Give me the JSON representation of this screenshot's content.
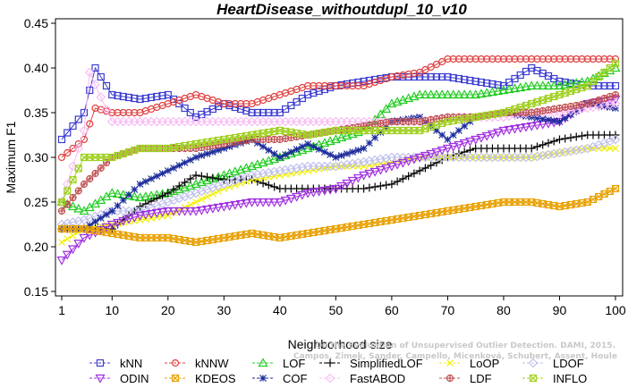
{
  "chart_data": {
    "type": "line",
    "title": "HeartDisease_withoutdupl_10_v10",
    "xlabel": "Neighborhood size",
    "ylabel": "Maximum F1",
    "xlim": [
      1,
      100
    ],
    "ylim": [
      0.15,
      0.45
    ],
    "x_ticks": [
      "1",
      "10",
      "20",
      "30",
      "40",
      "50",
      "60",
      "70",
      "80",
      "90",
      "100"
    ],
    "y_ticks": [
      "0.15",
      "0.20",
      "0.25",
      "0.30",
      "0.35",
      "0.40",
      "0.45"
    ],
    "grid": false,
    "legend_position": "bottom",
    "credit_lines": [
      "Campos, Zimek, Sander, Campello, Micenková, Schubert, Assent, Houle",
      "On the Evaluation of Unsupervised Outlier Detection. DAMI, 2015."
    ],
    "x_anchor_note": "values listed at k = 1, 5, 10, ..., 100",
    "series": [
      {
        "name": "kNN",
        "color": "#3c3cd2",
        "marker": "square",
        "points": [
          [
            1,
            0.32
          ],
          [
            5,
            0.35
          ],
          [
            7,
            0.4
          ],
          [
            10,
            0.37
          ],
          [
            15,
            0.365
          ],
          [
            20,
            0.37
          ],
          [
            25,
            0.345
          ],
          [
            30,
            0.36
          ],
          [
            35,
            0.35
          ],
          [
            40,
            0.35
          ],
          [
            45,
            0.37
          ],
          [
            50,
            0.38
          ],
          [
            55,
            0.385
          ],
          [
            60,
            0.39
          ],
          [
            65,
            0.39
          ],
          [
            70,
            0.39
          ],
          [
            75,
            0.385
          ],
          [
            80,
            0.38
          ],
          [
            85,
            0.4
          ],
          [
            90,
            0.385
          ],
          [
            95,
            0.38
          ],
          [
            100,
            0.38
          ]
        ]
      },
      {
        "name": "kNNW",
        "color": "#e04040",
        "marker": "circle",
        "points": [
          [
            1,
            0.3
          ],
          [
            5,
            0.32
          ],
          [
            7,
            0.355
          ],
          [
            10,
            0.35
          ],
          [
            15,
            0.35
          ],
          [
            20,
            0.36
          ],
          [
            25,
            0.37
          ],
          [
            30,
            0.36
          ],
          [
            35,
            0.36
          ],
          [
            40,
            0.37
          ],
          [
            45,
            0.38
          ],
          [
            50,
            0.38
          ],
          [
            55,
            0.38
          ],
          [
            60,
            0.39
          ],
          [
            65,
            0.395
          ],
          [
            70,
            0.41
          ],
          [
            75,
            0.41
          ],
          [
            80,
            0.41
          ],
          [
            85,
            0.41
          ],
          [
            90,
            0.41
          ],
          [
            95,
            0.41
          ],
          [
            100,
            0.41
          ]
        ]
      },
      {
        "name": "LOF",
        "color": "#22cc22",
        "marker": "triangle-up",
        "points": [
          [
            1,
            0.25
          ],
          [
            5,
            0.24
          ],
          [
            10,
            0.26
          ],
          [
            15,
            0.255
          ],
          [
            20,
            0.26
          ],
          [
            25,
            0.27
          ],
          [
            30,
            0.28
          ],
          [
            35,
            0.29
          ],
          [
            40,
            0.3
          ],
          [
            45,
            0.31
          ],
          [
            50,
            0.32
          ],
          [
            55,
            0.33
          ],
          [
            60,
            0.36
          ],
          [
            65,
            0.37
          ],
          [
            70,
            0.37
          ],
          [
            75,
            0.37
          ],
          [
            80,
            0.375
          ],
          [
            85,
            0.38
          ],
          [
            90,
            0.38
          ],
          [
            95,
            0.385
          ],
          [
            100,
            0.4
          ]
        ]
      },
      {
        "name": "SimplifiedLOF",
        "color": "#000000",
        "marker": "plus",
        "points": [
          [
            1,
            0.22
          ],
          [
            5,
            0.22
          ],
          [
            10,
            0.22
          ],
          [
            15,
            0.245
          ],
          [
            20,
            0.26
          ],
          [
            25,
            0.28
          ],
          [
            30,
            0.275
          ],
          [
            35,
            0.275
          ],
          [
            40,
            0.265
          ],
          [
            45,
            0.265
          ],
          [
            50,
            0.265
          ],
          [
            55,
            0.265
          ],
          [
            60,
            0.27
          ],
          [
            65,
            0.285
          ],
          [
            70,
            0.3
          ],
          [
            75,
            0.31
          ],
          [
            80,
            0.31
          ],
          [
            85,
            0.31
          ],
          [
            90,
            0.32
          ],
          [
            95,
            0.325
          ],
          [
            100,
            0.325
          ]
        ]
      },
      {
        "name": "LoOP",
        "color": "#f0f000",
        "marker": "x",
        "points": [
          [
            1,
            0.205
          ],
          [
            5,
            0.22
          ],
          [
            10,
            0.225
          ],
          [
            15,
            0.23
          ],
          [
            20,
            0.235
          ],
          [
            25,
            0.25
          ],
          [
            30,
            0.265
          ],
          [
            35,
            0.275
          ],
          [
            40,
            0.28
          ],
          [
            45,
            0.285
          ],
          [
            50,
            0.29
          ],
          [
            55,
            0.29
          ],
          [
            60,
            0.295
          ],
          [
            65,
            0.3
          ],
          [
            70,
            0.3
          ],
          [
            75,
            0.3
          ],
          [
            80,
            0.3
          ],
          [
            85,
            0.3
          ],
          [
            90,
            0.305
          ],
          [
            95,
            0.31
          ],
          [
            100,
            0.31
          ]
        ]
      },
      {
        "name": "LDOF",
        "color": "#c0c0ee",
        "marker": "diamond",
        "points": [
          [
            1,
            0.225
          ],
          [
            5,
            0.23
          ],
          [
            10,
            0.24
          ],
          [
            15,
            0.24
          ],
          [
            20,
            0.25
          ],
          [
            25,
            0.26
          ],
          [
            30,
            0.27
          ],
          [
            35,
            0.28
          ],
          [
            40,
            0.285
          ],
          [
            45,
            0.29
          ],
          [
            50,
            0.29
          ],
          [
            55,
            0.295
          ],
          [
            60,
            0.3
          ],
          [
            65,
            0.3
          ],
          [
            70,
            0.3
          ],
          [
            75,
            0.3
          ],
          [
            80,
            0.3
          ],
          [
            85,
            0.3
          ],
          [
            90,
            0.305
          ],
          [
            95,
            0.31
          ],
          [
            100,
            0.32
          ]
        ]
      },
      {
        "name": "ODIN",
        "color": "#a030e0",
        "marker": "triangle-down",
        "points": [
          [
            1,
            0.185
          ],
          [
            5,
            0.21
          ],
          [
            10,
            0.225
          ],
          [
            15,
            0.235
          ],
          [
            20,
            0.24
          ],
          [
            25,
            0.24
          ],
          [
            30,
            0.245
          ],
          [
            35,
            0.25
          ],
          [
            40,
            0.25
          ],
          [
            45,
            0.26
          ],
          [
            50,
            0.265
          ],
          [
            55,
            0.28
          ],
          [
            60,
            0.29
          ],
          [
            65,
            0.3
          ],
          [
            70,
            0.31
          ],
          [
            75,
            0.32
          ],
          [
            80,
            0.33
          ],
          [
            85,
            0.335
          ],
          [
            90,
            0.34
          ],
          [
            95,
            0.36
          ],
          [
            100,
            0.365
          ]
        ]
      },
      {
        "name": "COF",
        "color": "#1a2a9a",
        "marker": "asterisk",
        "points": [
          [
            1,
            0.22
          ],
          [
            5,
            0.22
          ],
          [
            10,
            0.24
          ],
          [
            15,
            0.27
          ],
          [
            20,
            0.285
          ],
          [
            25,
            0.3
          ],
          [
            30,
            0.31
          ],
          [
            35,
            0.32
          ],
          [
            40,
            0.3
          ],
          [
            45,
            0.315
          ],
          [
            50,
            0.3
          ],
          [
            55,
            0.31
          ],
          [
            60,
            0.34
          ],
          [
            65,
            0.345
          ],
          [
            70,
            0.32
          ],
          [
            75,
            0.345
          ],
          [
            80,
            0.35
          ],
          [
            85,
            0.345
          ],
          [
            90,
            0.34
          ],
          [
            95,
            0.36
          ],
          [
            100,
            0.355
          ]
        ]
      },
      {
        "name": "FastABOD",
        "color": "#f8bcf4",
        "marker": "diamond",
        "points": [
          [
            1,
            0.25
          ],
          [
            5,
            0.33
          ],
          [
            6,
            0.395
          ],
          [
            10,
            0.34
          ],
          [
            15,
            0.34
          ],
          [
            20,
            0.34
          ],
          [
            25,
            0.34
          ],
          [
            30,
            0.34
          ],
          [
            35,
            0.34
          ],
          [
            40,
            0.34
          ],
          [
            45,
            0.34
          ],
          [
            50,
            0.34
          ],
          [
            55,
            0.34
          ],
          [
            60,
            0.34
          ],
          [
            65,
            0.34
          ],
          [
            70,
            0.345
          ],
          [
            75,
            0.345
          ],
          [
            80,
            0.345
          ],
          [
            85,
            0.35
          ],
          [
            90,
            0.35
          ],
          [
            95,
            0.355
          ],
          [
            100,
            0.36
          ]
        ]
      },
      {
        "name": "KDEOS",
        "color": "#e8a000",
        "marker": "square-x",
        "points": [
          [
            1,
            0.22
          ],
          [
            5,
            0.22
          ],
          [
            10,
            0.215
          ],
          [
            15,
            0.21
          ],
          [
            20,
            0.21
          ],
          [
            25,
            0.205
          ],
          [
            30,
            0.21
          ],
          [
            35,
            0.215
          ],
          [
            40,
            0.21
          ],
          [
            45,
            0.215
          ],
          [
            50,
            0.22
          ],
          [
            55,
            0.225
          ],
          [
            60,
            0.23
          ],
          [
            65,
            0.235
          ],
          [
            70,
            0.24
          ],
          [
            75,
            0.245
          ],
          [
            80,
            0.25
          ],
          [
            85,
            0.25
          ],
          [
            90,
            0.245
          ],
          [
            95,
            0.25
          ],
          [
            100,
            0.265
          ]
        ]
      },
      {
        "name": "LDF",
        "color": "#c05050",
        "marker": "circle-plus",
        "points": [
          [
            1,
            0.24
          ],
          [
            5,
            0.27
          ],
          [
            10,
            0.3
          ],
          [
            15,
            0.31
          ],
          [
            20,
            0.31
          ],
          [
            25,
            0.31
          ],
          [
            30,
            0.315
          ],
          [
            35,
            0.32
          ],
          [
            40,
            0.32
          ],
          [
            45,
            0.325
          ],
          [
            50,
            0.33
          ],
          [
            55,
            0.335
          ],
          [
            60,
            0.34
          ],
          [
            65,
            0.34
          ],
          [
            70,
            0.345
          ],
          [
            75,
            0.345
          ],
          [
            80,
            0.35
          ],
          [
            85,
            0.35
          ],
          [
            90,
            0.355
          ],
          [
            95,
            0.36
          ],
          [
            100,
            0.37
          ]
        ]
      },
      {
        "name": "INFLO",
        "color": "#a0d020",
        "marker": "square-x",
        "points": [
          [
            1,
            0.25
          ],
          [
            5,
            0.3
          ],
          [
            10,
            0.3
          ],
          [
            15,
            0.31
          ],
          [
            20,
            0.31
          ],
          [
            25,
            0.315
          ],
          [
            30,
            0.32
          ],
          [
            35,
            0.325
          ],
          [
            40,
            0.33
          ],
          [
            45,
            0.325
          ],
          [
            50,
            0.33
          ],
          [
            55,
            0.33
          ],
          [
            60,
            0.33
          ],
          [
            65,
            0.33
          ],
          [
            70,
            0.34
          ],
          [
            75,
            0.345
          ],
          [
            80,
            0.35
          ],
          [
            85,
            0.36
          ],
          [
            90,
            0.37
          ],
          [
            95,
            0.38
          ],
          [
            100,
            0.405
          ]
        ]
      }
    ],
    "legend_rows": [
      [
        "kNN",
        "kNNW",
        "LOF",
        "SimplifiedLOF",
        "LoOP",
        "LDOF"
      ],
      [
        "ODIN",
        "KDEOS",
        "COF",
        "FastABOD",
        "LDF",
        "INFLO"
      ]
    ]
  }
}
